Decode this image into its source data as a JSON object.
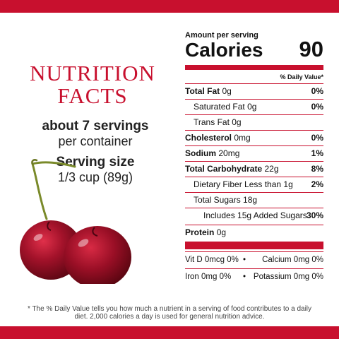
{
  "colors": {
    "brand_red": "#c8102e"
  },
  "heading": {
    "line1": "NUTRITION",
    "line2": "FACTS"
  },
  "servings": {
    "bold": "about 7 servings",
    "regular": "per container"
  },
  "serving_size": {
    "bold": "Serving size",
    "regular": "1/3 cup (89g)"
  },
  "image": {
    "icon": "cherries-illustration"
  },
  "panel": {
    "amount_per_serving": "Amount per serving",
    "calories_label": "Calories",
    "calories_value": "90",
    "dv_header": "% Daily Value*",
    "rows": [
      {
        "label": "Total Fat",
        "amount": "0g",
        "pct": "0%"
      },
      {
        "label": "Saturated Fat",
        "amount": "0g",
        "pct": "0%"
      },
      {
        "label": "Trans Fat",
        "amount": "0g",
        "pct": ""
      },
      {
        "label": "Cholesterol",
        "amount": "0mg",
        "pct": "0%"
      },
      {
        "label": "Sodium",
        "amount": "20mg",
        "pct": "1%"
      },
      {
        "label": "Total Carbohydrate",
        "amount": "22g",
        "pct": "8%"
      },
      {
        "label": "Dietary Fiber",
        "amount": "Less than 1g",
        "pct": "2%"
      },
      {
        "label": "Total Sugars",
        "amount": "18g",
        "pct": ""
      },
      {
        "label": "Includes 15g Added Sugars",
        "amount": "",
        "pct": "30%"
      },
      {
        "label": "Protein",
        "amount": "0g",
        "pct": ""
      }
    ],
    "vitamins": [
      {
        "left": "Vit D 0mcg 0%",
        "sep": "•",
        "right": "Calcium 0mg 0%"
      },
      {
        "left": "Iron 0mg 0%",
        "sep": "•",
        "right": "Potassium 0mg 0%"
      }
    ]
  },
  "footnote": "* The % Daily Value tells you how much a nutrient in a serving of food contributes to a daily diet. 2,000 calories a day is used for general nutrition advice."
}
